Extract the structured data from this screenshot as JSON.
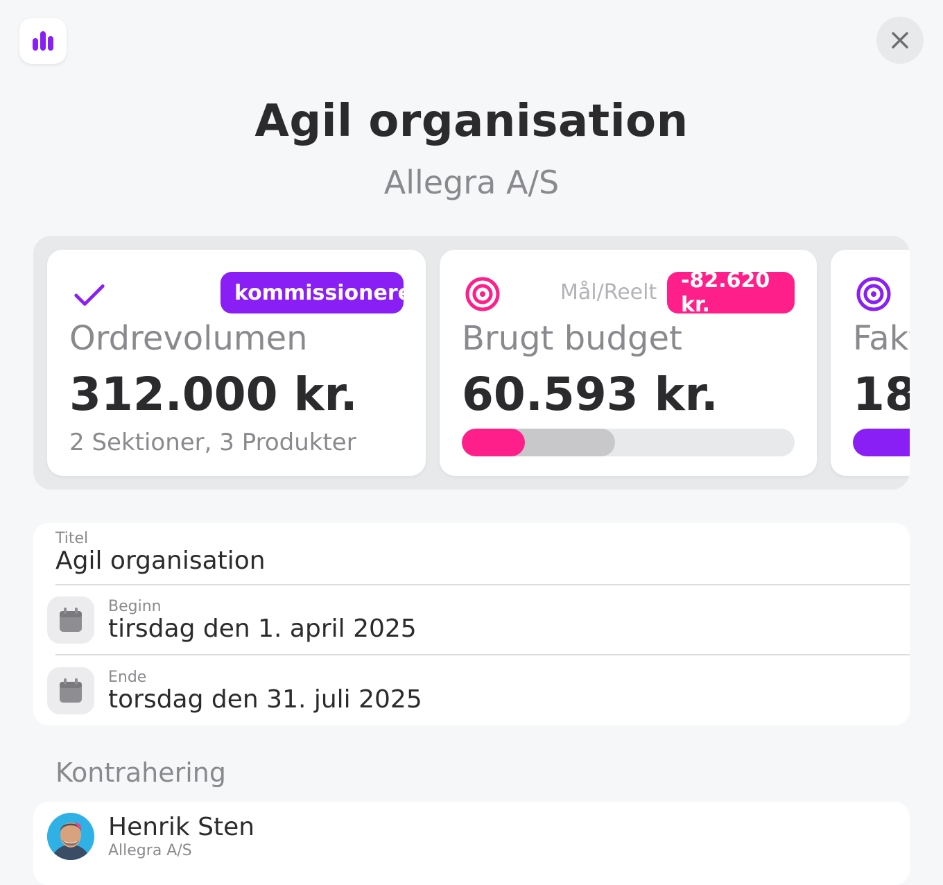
{
  "header": {
    "title": "Agil organisation",
    "subtitle": "Allegra A/S"
  },
  "cards": [
    {
      "badge": "kommissioneret",
      "label": "Ordrevolumen",
      "value": "312.000 kr.",
      "sub": "2 Sektioner, 3 Produkter",
      "icon": "check-icon",
      "badge_color": "#8a1ff5"
    },
    {
      "tag_label": "Mål/Reelt",
      "badge": "-82.620 kr.",
      "label": "Brugt budget",
      "value": "60.593 kr.",
      "icon": "target-icon",
      "badge_color": "#ff1f8a",
      "progress": {
        "actual_fraction": 0.19,
        "target_fraction": 0.46
      }
    },
    {
      "label": "Fakt",
      "value": "18",
      "icon": "target-icon",
      "accent": "#8a1ff5"
    }
  ],
  "form": {
    "title_label": "Titel",
    "title_value": "Agil organisation",
    "start_label": "Beginn",
    "start_value": "tirsdag den 1. april 2025",
    "end_label": "Ende",
    "end_value": "torsdag den 31. juli 2025"
  },
  "contracting": {
    "heading": "Kontrahering",
    "person_name": "Henrik Sten",
    "person_company": "Allegra A/S"
  },
  "colors": {
    "purple": "#8a1ff5",
    "pink": "#ff1f8a",
    "grey_bar": "#c8c8cb"
  }
}
